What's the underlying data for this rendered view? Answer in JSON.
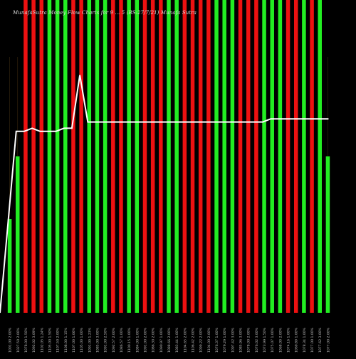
{
  "chart_data": {
    "type": "bar",
    "title": "MunafaSutra Money Flow Charts for 9 ... 5 (BS:27/7/21) Munafa Sutra",
    "categories": [
      "1001.00 2.00%",
      "1027.50 2.00%",
      "1078.00 1.50%",
      "1092.02 3.09%",
      "1102.05 1.24%",
      "1105.00 1.50%",
      "1107.50 2.00%",
      "1108.00 1.15%",
      "1107.00 1.06%",
      "1105.00 1.00%",
      "1091.00 1.23%",
      "1085.00 3.00%",
      "1091.00 2.50%",
      "1092.57 2.00%",
      "1086.57 1.00%",
      "1100.15 1.00%",
      "1084.00 1.00%",
      "1091.00 2.00%",
      "1086.30 2.00%",
      "1090.97 1.00%",
      "1088.66 2.00%",
      "1083.44 1.00%",
      "1104.65 2.00%",
      "1106.42 2.00%",
      "1099.22 2.00%",
      "1104.00 2.00%",
      "1076.37 1.00%",
      "1079.29 1.00%",
      "1097.42 3.00%",
      "1085.96 3.00%",
      "1078.00 2.00%",
      "1076.02 3.00%",
      "1073.99 1.50%",
      "1075.07 1.00%",
      "1068.00 2.00%",
      "1074.16 1.00%",
      "1069.89 1.00%",
      "1078.34 1.00%",
      "1077.00 1.00%",
      "1077.62 3.00%",
      "1077.00 2.00%"
    ],
    "values": [
      30,
      50,
      100,
      100,
      100,
      100,
      100,
      100,
      100,
      100,
      100,
      100,
      100,
      100,
      100,
      100,
      100,
      100,
      100,
      100,
      100,
      100,
      100,
      100,
      100,
      100,
      100,
      100,
      100,
      100,
      100,
      100,
      100,
      100,
      100,
      100,
      100,
      100,
      100,
      100,
      50
    ],
    "colors": [
      "green",
      "green",
      "red",
      "red",
      "red",
      "green",
      "green",
      "green",
      "red",
      "red",
      "green",
      "green",
      "green",
      "red",
      "red",
      "green",
      "green",
      "red",
      "red",
      "red",
      "green",
      "green",
      "red",
      "red",
      "red",
      "red",
      "green",
      "green",
      "green",
      "red",
      "red",
      "red",
      "green",
      "green",
      "green",
      "red",
      "red",
      "green",
      "red",
      "green",
      "green"
    ],
    "line": [
      0,
      58,
      58,
      59,
      58,
      58,
      58,
      59,
      59,
      76,
      61,
      61,
      61,
      61,
      61,
      61,
      61,
      61,
      61,
      61,
      61,
      61,
      61,
      61,
      61,
      61,
      61,
      61,
      61,
      61,
      61,
      61,
      61,
      62,
      62,
      62,
      62,
      62,
      62,
      62,
      62
    ],
    "ylim": [
      0,
      100
    ],
    "grid": false,
    "legend": "none"
  },
  "colors": {
    "background": "#000000",
    "up": "#22ee22",
    "down": "#ee1111",
    "line": "#ffffff",
    "tick_text": "#bbbbbb"
  }
}
